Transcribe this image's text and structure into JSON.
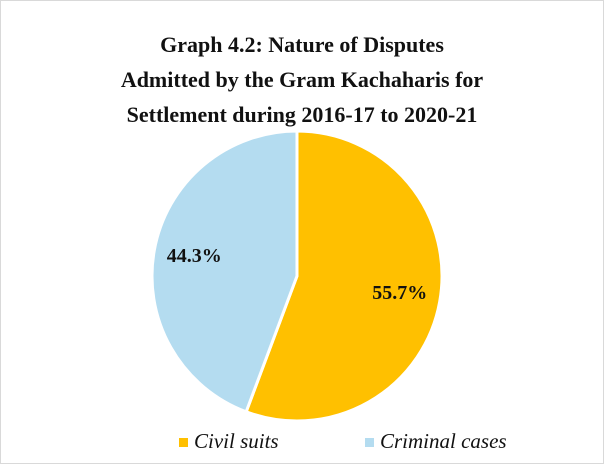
{
  "chart_data": {
    "type": "pie",
    "title": "Graph 4.2: Nature of Disputes\nAdmitted by the Gram Kachaharis for\nSettlement during 2016-17 to 2020-21",
    "categories": [
      "Civil suits",
      "Criminal cases"
    ],
    "values": [
      55.7,
      44.3
    ],
    "value_labels": [
      "55.7%",
      "44.3%"
    ],
    "colors": [
      "#FFC000",
      "#B4DCF0"
    ],
    "legend": "bottom"
  }
}
